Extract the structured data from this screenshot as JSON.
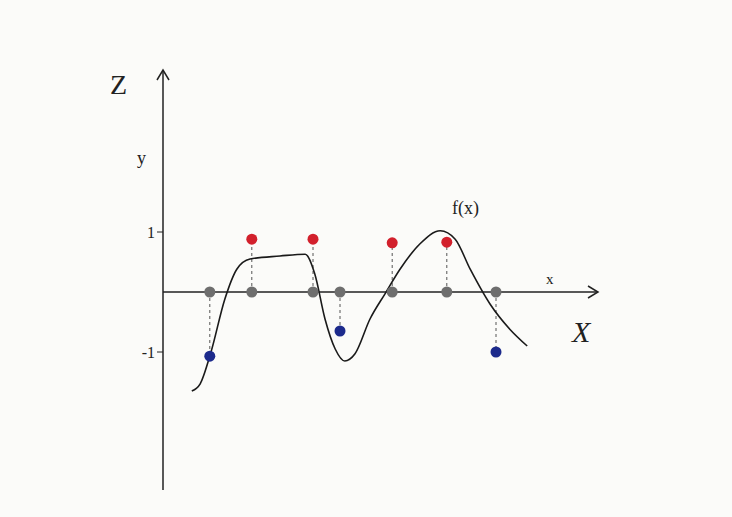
{
  "chart_data": {
    "type": "line",
    "x_label": "X",
    "y_label": "Z",
    "x_inner_label": "x",
    "y_inner_label": "y",
    "xlim": [
      0,
      7.25
    ],
    "ylim": [
      -3.3,
      3.7
    ],
    "xticks": [],
    "yticks": [
      -1,
      1
    ],
    "tick_labels": "y",
    "grid": false,
    "series": [
      {
        "name": "f(x)",
        "type": "line",
        "color": "#1a1a1a",
        "x": [
          0.48,
          0.62,
          0.8,
          1.03,
          1.23,
          1.45,
          1.95,
          2.37,
          2.53,
          2.7,
          2.87,
          3.03,
          3.2,
          3.45,
          3.7,
          3.95,
          4.28,
          4.62,
          4.87,
          5.12,
          5.45,
          5.78,
          6.07
        ],
        "values": [
          -1.65,
          -1.53,
          -1.0,
          -0.12,
          0.38,
          0.55,
          0.6,
          0.63,
          0.3,
          -0.45,
          -0.95,
          -1.15,
          -1.03,
          -0.45,
          -0.03,
          0.38,
          0.8,
          1.02,
          0.88,
          0.38,
          -0.2,
          -0.62,
          -0.9
        ]
      },
      {
        "type": "scatter",
        "color": "#6e6e6e",
        "x": [
          0.78,
          1.48,
          2.5,
          2.95,
          3.82,
          4.73,
          5.55
        ],
        "values": [
          0,
          0,
          0,
          0,
          0,
          0,
          0
        ]
      },
      {
        "type": "scatter",
        "color": "#d2202c",
        "x": [
          1.48,
          2.5,
          3.82,
          4.73
        ],
        "values": [
          0.88,
          0.88,
          0.82,
          0.83
        ]
      },
      {
        "type": "scatter",
        "color": "#1c2a8c",
        "x": [
          0.78,
          2.95,
          5.55
        ],
        "values": [
          -1.07,
          -0.65,
          -1.0
        ]
      }
    ]
  }
}
